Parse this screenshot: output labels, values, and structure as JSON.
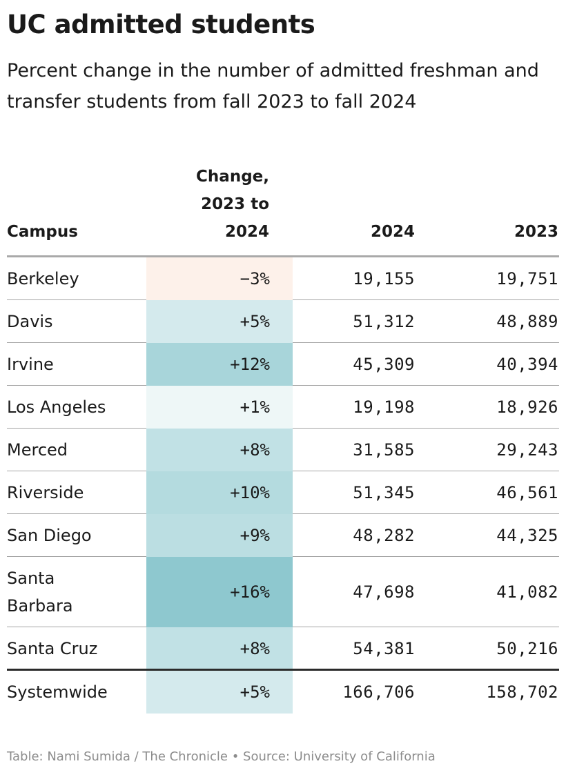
{
  "title": "UC admitted students",
  "subtitle": "Percent change in the number of admitted freshman and transfer students from fall 2023 to fall 2024",
  "headers": {
    "campus": "Campus",
    "change": "Change, 2023 to 2024",
    "y2024": "2024",
    "y2023": "2023"
  },
  "colors": {
    "negative": "#fdf1ea",
    "positive_scale_low": "#f4fafa",
    "positive_scale_high": "#8ec8cf"
  },
  "footer": "Table: Nami Sumida / The Chronicle • Source: University of California",
  "chart_data": {
    "type": "table",
    "columns": [
      "Campus",
      "Change, 2023 to 2024",
      "2024",
      "2023"
    ],
    "rows": [
      {
        "campus": "Berkeley",
        "change": "−3%",
        "change_value": -3,
        "y2024": "19,155",
        "y2023": "19,751"
      },
      {
        "campus": "Davis",
        "change": "+5%",
        "change_value": 5,
        "y2024": "51,312",
        "y2023": "48,889"
      },
      {
        "campus": "Irvine",
        "change": "+12%",
        "change_value": 12,
        "y2024": "45,309",
        "y2023": "40,394"
      },
      {
        "campus": "Los Angeles",
        "change": "+1%",
        "change_value": 1,
        "y2024": "19,198",
        "y2023": "18,926"
      },
      {
        "campus": "Merced",
        "change": "+8%",
        "change_value": 8,
        "y2024": "31,585",
        "y2023": "29,243"
      },
      {
        "campus": "Riverside",
        "change": "+10%",
        "change_value": 10,
        "y2024": "51,345",
        "y2023": "46,561"
      },
      {
        "campus": "San Diego",
        "change": "+9%",
        "change_value": 9,
        "y2024": "48,282",
        "y2023": "44,325"
      },
      {
        "campus": "Santa Barbara",
        "change": "+16%",
        "change_value": 16,
        "y2024": "47,698",
        "y2023": "41,082"
      },
      {
        "campus": "Santa Cruz",
        "change": "+8%",
        "change_value": 8,
        "y2024": "54,381",
        "y2023": "50,216"
      }
    ],
    "total": {
      "campus": "Systemwide",
      "change": "+5%",
      "change_value": 5,
      "y2024": "166,706",
      "y2023": "158,702"
    }
  }
}
